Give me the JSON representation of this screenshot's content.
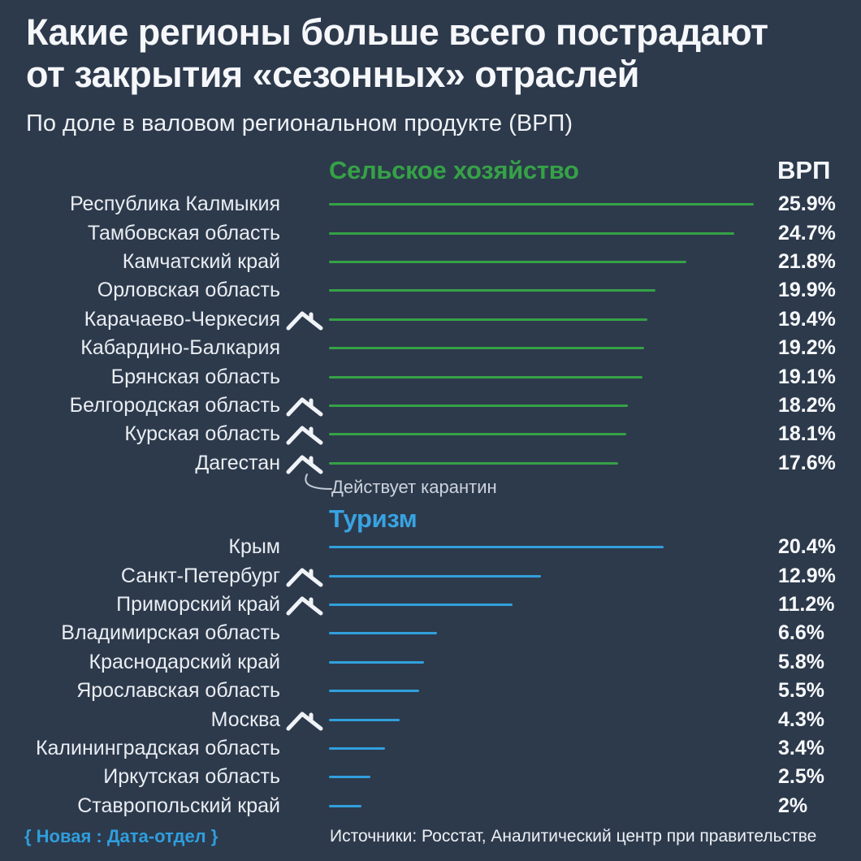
{
  "title_lines": [
    "Какие регионы больше всего пострадают",
    "от закрытия «сезонных» отраслей"
  ],
  "subtitle": "По доле в валовом региональном продукте (ВРП)",
  "vrp_header": "ВРП",
  "annotation_text": "Действует карантин",
  "footer": {
    "brand": "{ Новая : Дата-отдел }",
    "sources": "Источники: Росстат, Аналитический центр при правительстве"
  },
  "colors": {
    "background": "#2d3a4c",
    "agriculture": "#35a246",
    "tourism": "#31a0dc",
    "annotation": "#ccd3dd"
  },
  "chart_data": [
    {
      "type": "bar",
      "orientation": "horizontal",
      "title": "Сельское хозяйство",
      "value_unit": "% доли в ВРП",
      "xlim": [
        0,
        26
      ],
      "bar_color": "#35a246",
      "categories": [
        "Республика Калмыкия",
        "Тамбовская область",
        "Камчатский край",
        "Орловская область",
        "Карачаево-Черкесия",
        "Кабардино-Балкария",
        "Брянская область",
        "Белгородская область",
        "Курская область",
        "Дагестан"
      ],
      "values": [
        25.9,
        24.7,
        21.8,
        19.9,
        19.4,
        19.2,
        19.1,
        18.2,
        18.1,
        17.6
      ],
      "value_labels": [
        "25.9%",
        "24.7%",
        "21.8%",
        "19.9%",
        "19.4%",
        "19.2%",
        "19.1%",
        "18.2%",
        "18.1%",
        "17.6%"
      ],
      "quarantine_marker": [
        false,
        false,
        false,
        false,
        true,
        false,
        false,
        true,
        true,
        true
      ]
    },
    {
      "type": "bar",
      "orientation": "horizontal",
      "title": "Туризм",
      "value_unit": "% доли в ВРП",
      "xlim": [
        0,
        26
      ],
      "bar_color": "#31a0dc",
      "categories": [
        "Крым",
        "Санкт-Петербург",
        "Приморский край",
        "Владимирская область",
        "Краснодарский край",
        "Ярославская область",
        "Москва",
        "Калининградская область",
        "Иркутская область",
        "Ставропольский край"
      ],
      "values": [
        20.4,
        12.9,
        11.2,
        6.6,
        5.8,
        5.5,
        4.3,
        3.4,
        2.5,
        2
      ],
      "value_labels": [
        "20.4%",
        "12.9%",
        "11.2%",
        "6.6%",
        "5.8%",
        "5.5%",
        "4.3%",
        "3.4%",
        "2.5%",
        "2%"
      ],
      "quarantine_marker": [
        false,
        true,
        true,
        false,
        false,
        false,
        true,
        false,
        false,
        false
      ]
    }
  ]
}
